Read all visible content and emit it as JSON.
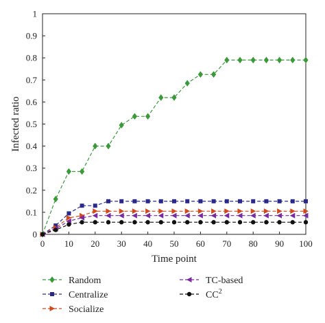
{
  "chart_data": {
    "type": "line",
    "xlabel": "Time point",
    "ylabel": "Infected ratio",
    "xlim": [
      0,
      100
    ],
    "ylim": [
      0,
      1
    ],
    "xticks": [
      0,
      10,
      20,
      30,
      40,
      50,
      60,
      70,
      80,
      90,
      100
    ],
    "yticks": [
      0,
      0.1,
      0.2,
      0.3,
      0.4,
      0.5,
      0.6,
      0.7,
      0.8,
      0.9,
      1
    ],
    "ytick_labels": [
      "0",
      "0.1",
      "0.2",
      "0.3",
      "0.4",
      "0.5",
      "0.6",
      "0.7",
      "0.8",
      "0.9",
      "1"
    ],
    "grid": false,
    "legend_position": "bottom",
    "x": [
      0,
      5,
      10,
      15,
      20,
      25,
      30,
      35,
      40,
      45,
      50,
      55,
      60,
      65,
      70,
      75,
      80,
      85,
      90,
      95,
      100
    ],
    "series": [
      {
        "name": "Random",
        "color": "#3a9a3a",
        "marker": "diamond",
        "values": [
          0,
          0.16,
          0.285,
          0.285,
          0.4,
          0.4,
          0.495,
          0.535,
          0.535,
          0.62,
          0.62,
          0.685,
          0.725,
          0.725,
          0.79,
          0.79,
          0.79,
          0.79,
          0.79,
          0.79,
          0.79
        ]
      },
      {
        "name": "Centralize",
        "color": "#2a2a8a",
        "marker": "square",
        "values": [
          0,
          0.04,
          0.095,
          0.13,
          0.13,
          0.15,
          0.15,
          0.15,
          0.15,
          0.15,
          0.15,
          0.15,
          0.15,
          0.15,
          0.15,
          0.15,
          0.15,
          0.15,
          0.15,
          0.15,
          0.15
        ]
      },
      {
        "name": "Socialize",
        "color": "#d24a1a",
        "marker": "triangle-right",
        "values": [
          0,
          0.03,
          0.075,
          0.085,
          0.105,
          0.105,
          0.105,
          0.105,
          0.105,
          0.105,
          0.105,
          0.105,
          0.105,
          0.105,
          0.105,
          0.105,
          0.105,
          0.105,
          0.105,
          0.105,
          0.105
        ]
      },
      {
        "name": "TC-based",
        "color": "#7a2aa0",
        "marker": "triangle-left",
        "values": [
          0,
          0.025,
          0.06,
          0.075,
          0.085,
          0.085,
          0.085,
          0.085,
          0.085,
          0.085,
          0.085,
          0.085,
          0.085,
          0.085,
          0.085,
          0.085,
          0.085,
          0.085,
          0.085,
          0.085,
          0.085
        ]
      },
      {
        "name": "CC",
        "name_superscript": "2",
        "color": "#111111",
        "marker": "circle",
        "values": [
          0,
          0.02,
          0.045,
          0.055,
          0.055,
          0.055,
          0.055,
          0.055,
          0.055,
          0.055,
          0.055,
          0.055,
          0.055,
          0.055,
          0.055,
          0.055,
          0.055,
          0.055,
          0.055,
          0.055,
          0.055
        ]
      }
    ]
  }
}
